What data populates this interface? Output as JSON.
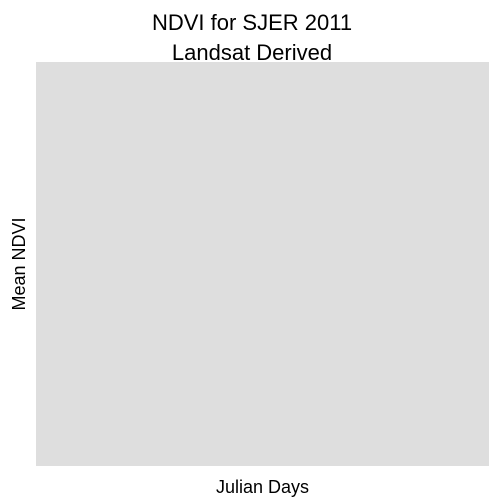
{
  "chart_data": {
    "type": "scatter",
    "title_lines": [
      "NDVI for SJER 2011",
      "Landsat Derived"
    ],
    "xlabel": "Julian Days",
    "ylabel": "Mean NDVI",
    "x": [],
    "y": [],
    "grid": false,
    "panel_color": "#dedede"
  }
}
